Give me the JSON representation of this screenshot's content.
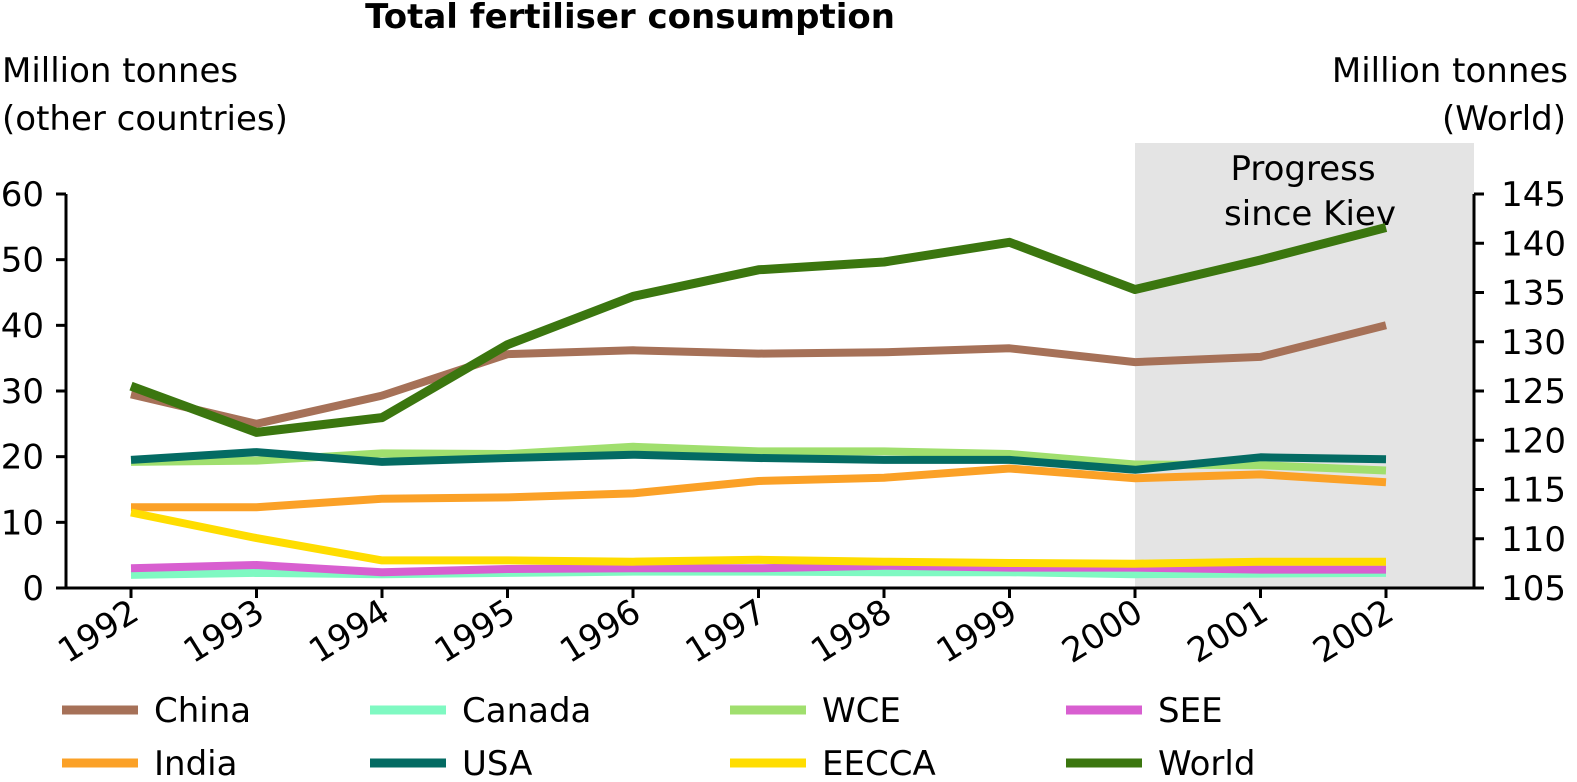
{
  "chart_data": {
    "type": "line",
    "title": "Total fertiliser consumption",
    "y_left_label": [
      "Million tonnes",
      "(other countries)"
    ],
    "y_right_label": [
      "Million tonnes",
      "(World)"
    ],
    "y_left_ticks": [
      "0",
      "10",
      "20",
      "30",
      "40",
      "50",
      "60"
    ],
    "y_right_ticks": [
      "105",
      "110",
      "115",
      "120",
      "125",
      "130",
      "135",
      "140",
      "145"
    ],
    "ylim_left": [
      0,
      60
    ],
    "ylim_right": [
      105,
      145
    ],
    "categories": [
      "1992",
      "1993",
      "1994",
      "1995",
      "1996",
      "1997",
      "1998",
      "1999",
      "2000",
      "2001",
      "2002"
    ],
    "annotation": [
      "Progress",
      "since Kiev"
    ],
    "shaded_from": "2000",
    "grid": false,
    "legend_placement": "bottom",
    "series": [
      {
        "name": "China",
        "axis": "left",
        "color": "#A67158",
        "values": [
          29.5,
          25.0,
          29.3,
          35.6,
          36.2,
          35.7,
          35.9,
          36.5,
          34.4,
          35.2,
          40.0
        ]
      },
      {
        "name": "Canada",
        "axis": "left",
        "color": "#7FF9C2",
        "values": [
          2.0,
          2.3,
          2.1,
          2.3,
          2.5,
          2.5,
          2.4,
          2.4,
          2.1,
          2.2,
          2.3
        ]
      },
      {
        "name": "WCE",
        "axis": "left",
        "color": "#A0DF6E",
        "values": [
          19.2,
          19.4,
          20.5,
          20.4,
          21.5,
          20.8,
          20.8,
          20.4,
          18.8,
          18.7,
          17.9
        ]
      },
      {
        "name": "SEE",
        "axis": "left",
        "color": "#D85FD0",
        "values": [
          3.0,
          3.5,
          2.4,
          2.9,
          3.0,
          3.0,
          3.4,
          3.1,
          3.1,
          2.8,
          2.8
        ]
      },
      {
        "name": "India",
        "axis": "left",
        "color": "#FBA127",
        "values": [
          12.3,
          12.3,
          13.6,
          13.8,
          14.4,
          16.3,
          16.8,
          18.2,
          16.7,
          17.3,
          16.1
        ]
      },
      {
        "name": "USA",
        "axis": "left",
        "color": "#046B63",
        "values": [
          19.5,
          20.7,
          19.2,
          19.8,
          20.3,
          19.8,
          19.5,
          19.5,
          18.0,
          19.9,
          19.6
        ]
      },
      {
        "name": "EECCA",
        "axis": "left",
        "color": "#FFDD00",
        "values": [
          11.5,
          7.6,
          4.2,
          4.2,
          4.0,
          4.3,
          4.0,
          3.8,
          3.7,
          4.0,
          4.0
        ]
      },
      {
        "name": "World",
        "axis": "right",
        "color": "#3B760F",
        "values": [
          125.5,
          120.8,
          122.3,
          129.7,
          134.6,
          137.3,
          138.1,
          140.1,
          135.3,
          138.3,
          141.6
        ]
      }
    ]
  }
}
